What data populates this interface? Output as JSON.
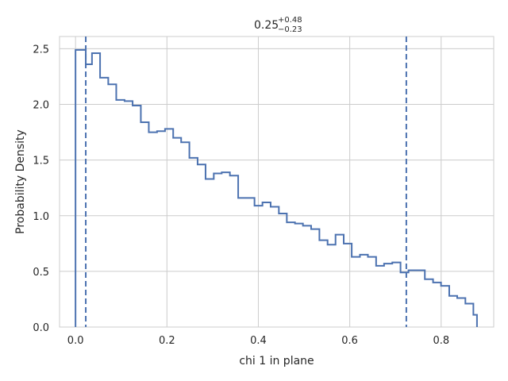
{
  "chart_data": {
    "type": "histogram-step",
    "title": {
      "value": "0.25",
      "upper": "+0.48",
      "lower": "−0.23"
    },
    "xlabel": "chi 1 in plane",
    "ylabel": "Probability Density",
    "xlim": [
      -0.035,
      0.915
    ],
    "ylim": [
      0,
      2.61
    ],
    "xticks": [
      0.0,
      0.2,
      0.4,
      0.6,
      0.8
    ],
    "xtick_labels": [
      "0.0",
      "0.2",
      "0.4",
      "0.6",
      "0.8"
    ],
    "yticks": [
      0.0,
      0.5,
      1.0,
      1.5,
      2.0,
      2.5
    ],
    "ytick_labels": [
      "0.0",
      "0.5",
      "1.0",
      "1.5",
      "2.0",
      "2.5"
    ],
    "grid": true,
    "line_color": "#4c72b0",
    "bin_edges": [
      0.0,
      0.0224,
      0.036,
      0.0537,
      0.0716,
      0.0891,
      0.1073,
      0.1249,
      0.1429,
      0.1603,
      0.1784,
      0.1958,
      0.2137,
      0.2311,
      0.2491,
      0.2671,
      0.2845,
      0.3025,
      0.3199,
      0.3378,
      0.3559,
      0.3916,
      0.409,
      0.4269,
      0.4449,
      0.4623,
      0.4802,
      0.4976,
      0.5155,
      0.5336,
      0.5515,
      0.5689,
      0.5868,
      0.6043,
      0.6223,
      0.6397,
      0.6577,
      0.6751,
      0.6931,
      0.7111,
      0.7285,
      0.7643,
      0.7823,
      0.7997,
      0.8177,
      0.8351,
      0.853,
      0.8705
    ],
    "densities": [
      2.49,
      2.36,
      2.46,
      2.24,
      2.18,
      2.04,
      2.03,
      1.99,
      1.84,
      1.75,
      1.76,
      1.78,
      1.7,
      1.66,
      1.52,
      1.46,
      1.33,
      1.38,
      1.39,
      1.36,
      1.16,
      1.09,
      1.12,
      1.08,
      1.02,
      0.94,
      0.93,
      0.91,
      0.88,
      0.78,
      0.74,
      0.83,
      0.75,
      0.63,
      0.65,
      0.63,
      0.55,
      0.57,
      0.58,
      0.49,
      0.51,
      0.43,
      0.4,
      0.37,
      0.28,
      0.26,
      0.21,
      0.11
    ],
    "x_end": 0.8784,
    "quantile_lines": [
      0.0224,
      0.7238
    ]
  }
}
